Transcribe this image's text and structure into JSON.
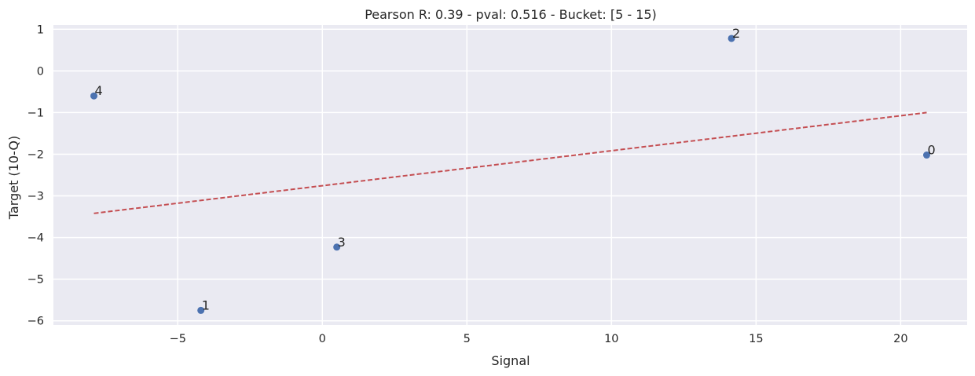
{
  "chart_data": {
    "type": "scatter",
    "title": "Pearson R: 0.39 - pval: 0.516 - Bucket: [5 - 15)",
    "xlabel": "Signal",
    "ylabel": "Target (10-Q)",
    "xlim": [
      -9.3,
      22.3
    ],
    "ylim": [
      -6.1,
      1.1
    ],
    "x_ticks": [
      -5,
      0,
      5,
      10,
      15,
      20
    ],
    "y_ticks": [
      1,
      0,
      -1,
      -2,
      -3,
      -4,
      -5,
      -6
    ],
    "grid": true,
    "points": [
      {
        "label": "0",
        "x": 20.9,
        "y": -2.02
      },
      {
        "label": "1",
        "x": -4.2,
        "y": -5.75
      },
      {
        "label": "2",
        "x": 14.15,
        "y": 0.78
      },
      {
        "label": "3",
        "x": 0.5,
        "y": -4.23
      },
      {
        "label": "4",
        "x": -7.9,
        "y": -0.6
      }
    ],
    "trendline": {
      "x": [
        -7.9,
        20.9
      ],
      "y": [
        -3.42,
        -1.0
      ],
      "style": "dashed"
    },
    "colors": {
      "points": "#4c72b0",
      "trendline": "#c44e52",
      "background": "#eaeaf2",
      "grid": "#ffffff"
    }
  }
}
